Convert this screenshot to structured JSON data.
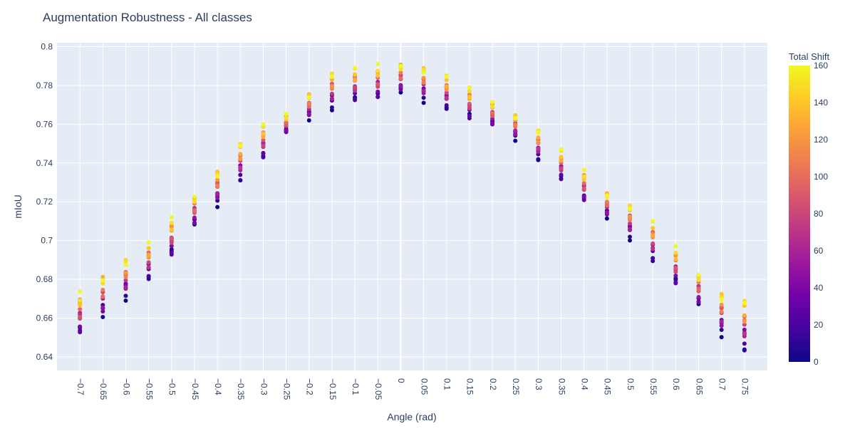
{
  "chart_data": {
    "type": "scatter",
    "title": "Augmentation Robustness - All classes",
    "xlabel": "Angle (rad)",
    "ylabel": "mIoU",
    "ylim": [
      0.633,
      0.802
    ],
    "y_ticks": [
      "0.64",
      "0.66",
      "0.68",
      "0.7",
      "0.72",
      "0.74",
      "0.76",
      "0.78",
      "0.8"
    ],
    "x_ticks": [
      "−0.7",
      "−0.65",
      "−0.6",
      "−0.55",
      "−0.5",
      "−0.45",
      "−0.4",
      "−0.35",
      "−0.3",
      "−0.25",
      "−0.2",
      "−0.15",
      "−0.1",
      "−0.05",
      "0",
      "0.05",
      "0.1",
      "0.15",
      "0.2",
      "0.25",
      "0.3",
      "0.35",
      "0.4",
      "0.45",
      "0.5",
      "0.55",
      "0.6",
      "0.65",
      "0.7",
      "0.75"
    ],
    "grid": true,
    "colorbar": {
      "title": "Total Shift",
      "range": [
        0,
        160
      ],
      "ticks": [
        "0",
        "20",
        "40",
        "60",
        "80",
        "100",
        "120",
        "140",
        "160"
      ],
      "colorscale": [
        "#0d0887",
        "#46039f",
        "#7201a8",
        "#9c179e",
        "#bd3786",
        "#d8576b",
        "#ed7953",
        "#fb9f3a",
        "#fdca26",
        "#f0f921"
      ]
    },
    "points_per_angle": 17,
    "shift_values": [
      0,
      10,
      20,
      30,
      40,
      50,
      60,
      70,
      80,
      90,
      100,
      110,
      120,
      130,
      140,
      150,
      160
    ],
    "columns": [
      {
        "angle": -0.7,
        "min": 0.649,
        "max": 0.674
      },
      {
        "angle": -0.65,
        "min": 0.658,
        "max": 0.684
      },
      {
        "angle": -0.6,
        "min": 0.669,
        "max": 0.691
      },
      {
        "angle": -0.55,
        "min": 0.679,
        "max": 0.699
      },
      {
        "angle": -0.5,
        "min": 0.69,
        "max": 0.712
      },
      {
        "angle": -0.45,
        "min": 0.705,
        "max": 0.725
      },
      {
        "angle": -0.4,
        "min": 0.717,
        "max": 0.737
      },
      {
        "angle": -0.35,
        "min": 0.73,
        "max": 0.75
      },
      {
        "angle": -0.3,
        "min": 0.741,
        "max": 0.76
      },
      {
        "angle": -0.25,
        "min": 0.754,
        "max": 0.766
      },
      {
        "angle": -0.2,
        "min": 0.761,
        "max": 0.777
      },
      {
        "angle": -0.15,
        "min": 0.767,
        "max": 0.787
      },
      {
        "angle": -0.1,
        "min": 0.771,
        "max": 0.789
      },
      {
        "angle": -0.05,
        "min": 0.771,
        "max": 0.791
      },
      {
        "angle": 0.0,
        "min": 0.774,
        "max": 0.793
      },
      {
        "angle": 0.05,
        "min": 0.771,
        "max": 0.79
      },
      {
        "angle": 0.1,
        "min": 0.767,
        "max": 0.785
      },
      {
        "angle": 0.15,
        "min": 0.761,
        "max": 0.779
      },
      {
        "angle": 0.2,
        "min": 0.757,
        "max": 0.773
      },
      {
        "angle": 0.25,
        "min": 0.751,
        "max": 0.766
      },
      {
        "angle": 0.3,
        "min": 0.741,
        "max": 0.757
      },
      {
        "angle": 0.35,
        "min": 0.73,
        "max": 0.747
      },
      {
        "angle": 0.4,
        "min": 0.718,
        "max": 0.737
      },
      {
        "angle": 0.45,
        "min": 0.71,
        "max": 0.726
      },
      {
        "angle": 0.5,
        "min": 0.7,
        "max": 0.719
      },
      {
        "angle": 0.55,
        "min": 0.688,
        "max": 0.71
      },
      {
        "angle": 0.6,
        "min": 0.675,
        "max": 0.697
      },
      {
        "angle": 0.65,
        "min": 0.664,
        "max": 0.685
      },
      {
        "angle": 0.7,
        "min": 0.65,
        "max": 0.674
      },
      {
        "angle": 0.75,
        "min": 0.642,
        "max": 0.669
      }
    ]
  }
}
